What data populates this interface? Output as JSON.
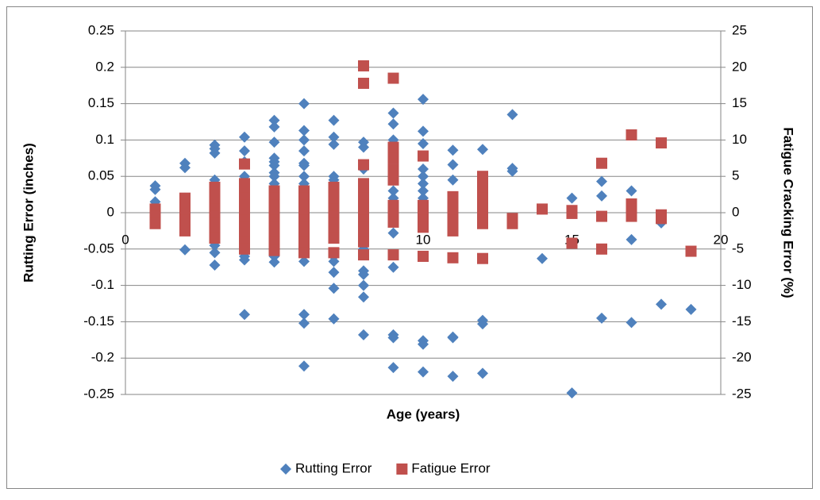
{
  "chart_data": {
    "type": "scatter",
    "x_label": "Age (years)",
    "y_label": "Rutting Error (inches)",
    "y2_label": "Fatigue Cracking Error (%)",
    "xlim": [
      0,
      20
    ],
    "xticks": [
      0,
      5,
      10,
      15,
      20
    ],
    "ylim": [
      -0.25,
      0.25
    ],
    "yticks": [
      0.25,
      0.2,
      0.15,
      0.1,
      0.05,
      0,
      -0.05,
      -0.1,
      -0.15,
      -0.2,
      -0.25
    ],
    "y2lim": [
      -25,
      25
    ],
    "y2ticks": [
      25,
      20,
      15,
      10,
      5,
      0,
      -5,
      -10,
      -15,
      -20,
      -25
    ],
    "grid": true,
    "legend": "bottom",
    "series": [
      {
        "name": "Rutting Error",
        "color": "#4f81bd",
        "marker": "diamond",
        "axis": "y",
        "x": [
          1,
          1,
          1,
          1,
          1,
          2,
          2,
          2,
          2,
          2,
          3,
          3,
          3,
          3,
          3,
          3,
          3,
          3,
          3,
          3,
          3,
          4,
          4,
          4,
          4,
          4,
          4,
          4,
          4,
          4,
          4,
          4,
          4,
          4,
          5,
          5,
          5,
          5,
          5,
          5,
          5,
          5,
          5,
          5,
          5,
          5,
          5,
          5,
          5,
          5,
          6,
          6,
          6,
          6,
          6,
          6,
          6,
          6,
          6,
          6,
          6,
          6,
          6,
          6,
          6,
          7,
          7,
          7,
          7,
          7,
          7,
          7,
          7,
          7,
          7,
          7,
          7,
          7,
          8,
          8,
          8,
          8,
          8,
          8,
          8,
          8,
          8,
          8,
          8,
          9,
          9,
          9,
          9,
          9,
          9,
          9,
          9,
          9,
          9,
          9,
          9,
          10,
          10,
          10,
          10,
          10,
          10,
          10,
          10,
          10,
          10,
          10,
          11,
          11,
          11,
          11,
          11,
          11,
          11,
          11,
          12,
          12,
          12,
          12,
          12,
          12,
          13,
          13,
          13,
          14,
          15,
          15,
          16,
          16,
          16,
          17,
          17,
          17,
          18,
          18,
          19
        ],
        "values": [
          0.037,
          0.032,
          0.015,
          0.01,
          -0.005,
          0.068,
          0.062,
          0.02,
          -0.01,
          -0.051,
          0.093,
          0.088,
          0.082,
          0.045,
          0.04,
          0.02,
          -0.01,
          -0.03,
          -0.045,
          -0.055,
          -0.072,
          0.104,
          0.085,
          0.07,
          0.05,
          0.04,
          0.03,
          0.02,
          0.01,
          -0.02,
          -0.04,
          -0.06,
          -0.065,
          -0.14,
          0.127,
          0.118,
          0.097,
          0.075,
          0.07,
          0.065,
          0.055,
          0.05,
          0.04,
          0.03,
          0.02,
          0.01,
          -0.01,
          -0.03,
          -0.06,
          -0.068,
          0.15,
          0.113,
          0.1,
          0.085,
          0.068,
          0.065,
          0.05,
          0.04,
          0.02,
          -0.02,
          -0.04,
          -0.067,
          -0.14,
          -0.152,
          -0.211,
          0.127,
          0.104,
          0.094,
          0.05,
          0.045,
          0.03,
          0.02,
          -0.03,
          -0.06,
          -0.067,
          -0.082,
          -0.104,
          -0.146,
          0.097,
          0.09,
          0.06,
          0.04,
          0.02,
          -0.05,
          -0.08,
          -0.085,
          -0.1,
          -0.116,
          -0.168,
          0.137,
          0.122,
          0.1,
          0.09,
          0.05,
          0.03,
          0.02,
          -0.028,
          -0.075,
          -0.168,
          -0.172,
          -0.213,
          0.156,
          0.112,
          0.095,
          0.06,
          0.05,
          0.04,
          0.03,
          0.02,
          -0.176,
          -0.181,
          -0.219,
          0.086,
          0.066,
          0.045,
          0.02,
          -0.005,
          -0.171,
          -0.172,
          -0.225,
          0.087,
          0.04,
          0.02,
          -0.148,
          -0.153,
          -0.221,
          0.135,
          0.061,
          0.057,
          -0.063,
          0.02,
          -0.248,
          0.043,
          0.023,
          -0.145,
          0.03,
          -0.037,
          -0.151,
          -0.014,
          -0.126,
          -0.133
        ]
      },
      {
        "name": "Fatigue Error",
        "color": "#c0504d",
        "marker": "square",
        "axis": "y2",
        "x": [
          1,
          1,
          1,
          2,
          2,
          2,
          2,
          2,
          3,
          3,
          3,
          3,
          3,
          3,
          3,
          3,
          4,
          4,
          4,
          4,
          4,
          4,
          4,
          4,
          4,
          4,
          4,
          5,
          5,
          5,
          5,
          5,
          5,
          5,
          5,
          5,
          6,
          6,
          6,
          6,
          6,
          6,
          6,
          6,
          6,
          7,
          7,
          7,
          7,
          7,
          7,
          7,
          7,
          7,
          8,
          8,
          8,
          8,
          8,
          8,
          8,
          8,
          8,
          8,
          8,
          8,
          8,
          9,
          9,
          9,
          9,
          9,
          9,
          9,
          9,
          9,
          10,
          10,
          10,
          10,
          10,
          10,
          11,
          11,
          11,
          11,
          11,
          11,
          12,
          12,
          12,
          12,
          12,
          12,
          12,
          12,
          13,
          13,
          14,
          15,
          15,
          15,
          16,
          16,
          16,
          17,
          17,
          17,
          17,
          18,
          18,
          18,
          19
        ],
        "values": [
          0.5,
          -0.5,
          -1.5,
          2,
          1,
          0,
          -1,
          -2.5,
          3.5,
          2.5,
          1.5,
          0.5,
          -0.5,
          -1.5,
          -2.5,
          -3.5,
          6.7,
          4,
          3,
          2,
          1,
          0,
          -1,
          -2,
          -3,
          -4,
          -5,
          3,
          2,
          1,
          0,
          -1,
          -2,
          -3,
          -4,
          -5.2,
          3,
          2,
          1,
          0,
          -1,
          -2,
          -3,
          -4,
          -5.5,
          3.5,
          2.5,
          1.5,
          0.5,
          -0.5,
          -1.5,
          -2.5,
          -3.5,
          -5.5,
          20.2,
          17.8,
          6.6,
          4,
          3,
          2,
          1,
          0,
          -1,
          -2,
          -3,
          -4,
          -5.8,
          18.5,
          9,
          7.5,
          6,
          4.5,
          1,
          0,
          -1.3,
          -5.8,
          7.8,
          1,
          0,
          -1,
          -2,
          -6,
          2.2,
          1,
          0,
          -1,
          -2.5,
          -6.2,
          5,
          4,
          3,
          2,
          1,
          0,
          -1.5,
          -6.3,
          -0.8,
          -1.5,
          0.5,
          0.3,
          -0.1,
          -4.2,
          6.8,
          -0.5,
          -5,
          10.7,
          1.2,
          0.5,
          -0.5,
          9.6,
          -0.3,
          -0.8,
          -5.3
        ]
      }
    ]
  }
}
